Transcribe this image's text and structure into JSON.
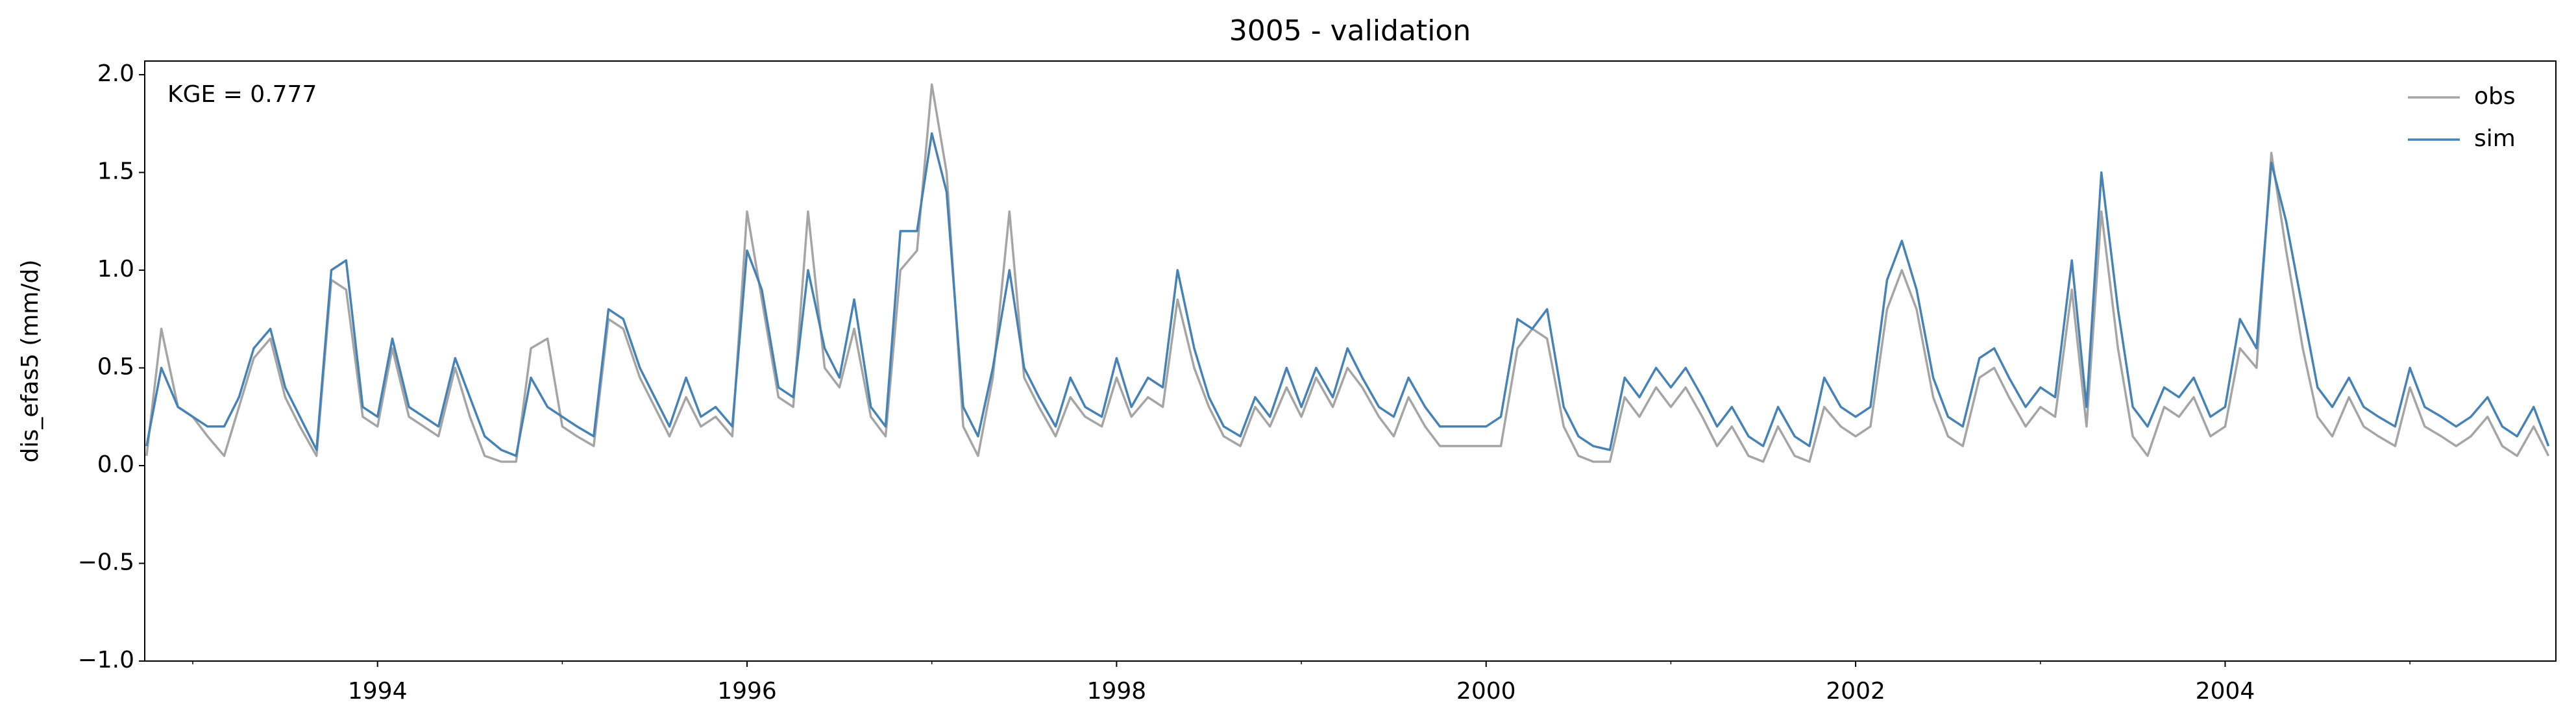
{
  "chart_data": {
    "type": "line",
    "title": "3005 - validation",
    "y_label": "dis_efas5 (mm/d)",
    "annotation": "KGE = 0.777",
    "legend": "upper right",
    "xlim": [
      1992.74,
      2005.79
    ],
    "xticks": [
      1994,
      1996,
      1998,
      2000,
      2002,
      2004
    ],
    "xminorticks": [
      1993,
      1995,
      1997,
      1999,
      2001,
      2003,
      2005
    ],
    "ylim": [
      -1,
      2.07
    ],
    "yticks": [
      {
        "value": -1,
        "label": "−1.0"
      },
      {
        "value": -0.5,
        "label": "−0.5"
      },
      {
        "value": 0,
        "label": "0.0"
      },
      {
        "value": 0.5,
        "label": "0.5"
      },
      {
        "value": 1,
        "label": "1.0"
      },
      {
        "value": 1.5,
        "label": "1.5"
      },
      {
        "value": 2,
        "label": "2.0"
      }
    ],
    "x": [
      1992.75,
      1992.83,
      1992.92,
      1993.0,
      1993.08,
      1993.17,
      1993.25,
      1993.33,
      1993.42,
      1993.5,
      1993.58,
      1993.67,
      1993.75,
      1993.83,
      1993.92,
      1994.0,
      1994.08,
      1994.17,
      1994.25,
      1994.33,
      1994.42,
      1994.5,
      1994.58,
      1994.67,
      1994.75,
      1994.83,
      1994.92,
      1995.0,
      1995.08,
      1995.17,
      1995.25,
      1995.33,
      1995.42,
      1995.5,
      1995.58,
      1995.67,
      1995.75,
      1995.83,
      1995.92,
      1996.0,
      1996.08,
      1996.17,
      1996.25,
      1996.33,
      1996.42,
      1996.5,
      1996.58,
      1996.67,
      1996.75,
      1996.83,
      1996.92,
      1997.0,
      1997.08,
      1997.17,
      1997.25,
      1997.33,
      1997.42,
      1997.5,
      1997.58,
      1997.67,
      1997.75,
      1997.83,
      1997.92,
      1998.0,
      1998.08,
      1998.17,
      1998.25,
      1998.33,
      1998.42,
      1998.5,
      1998.58,
      1998.67,
      1998.75,
      1998.83,
      1998.92,
      1999.0,
      1999.08,
      1999.17,
      1999.25,
      1999.33,
      1999.42,
      1999.5,
      1999.58,
      1999.67,
      1999.75,
      1999.83,
      1999.92,
      2000.0,
      2000.08,
      2000.17,
      2000.25,
      2000.33,
      2000.42,
      2000.5,
      2000.58,
      2000.67,
      2000.75,
      2000.83,
      2000.92,
      2001.0,
      2001.08,
      2001.17,
      2001.25,
      2001.33,
      2001.42,
      2001.5,
      2001.58,
      2001.67,
      2001.75,
      2001.83,
      2001.92,
      2002.0,
      2002.08,
      2002.17,
      2002.25,
      2002.33,
      2002.42,
      2002.5,
      2002.58,
      2002.67,
      2002.75,
      2002.83,
      2002.92,
      2003.0,
      2003.08,
      2003.17,
      2003.25,
      2003.33,
      2003.42,
      2003.5,
      2003.58,
      2003.67,
      2003.75,
      2003.83,
      2003.92,
      2004.0,
      2004.08,
      2004.17,
      2004.25,
      2004.33,
      2004.42,
      2004.5,
      2004.58,
      2004.67,
      2004.75,
      2004.83,
      2004.92,
      2005.0,
      2005.08,
      2005.17,
      2005.25,
      2005.33,
      2005.42,
      2005.5,
      2005.58,
      2005.67,
      2005.75
    ],
    "series": [
      {
        "name": "obs",
        "color": "#a5a5a5",
        "values": [
          0.05,
          0.7,
          0.3,
          0.25,
          0.15,
          0.05,
          0.3,
          0.55,
          0.65,
          0.35,
          0.2,
          0.05,
          0.95,
          0.9,
          0.25,
          0.2,
          0.6,
          0.25,
          0.2,
          0.15,
          0.5,
          0.25,
          0.05,
          0.02,
          0.02,
          0.6,
          0.65,
          0.2,
          0.15,
          0.1,
          0.75,
          0.7,
          0.45,
          0.3,
          0.15,
          0.35,
          0.2,
          0.25,
          0.15,
          1.3,
          0.85,
          0.35,
          0.3,
          1.3,
          0.5,
          0.4,
          0.7,
          0.25,
          0.15,
          1.0,
          1.1,
          1.95,
          1.5,
          0.2,
          0.05,
          0.45,
          1.3,
          0.45,
          0.3,
          0.15,
          0.35,
          0.25,
          0.2,
          0.45,
          0.25,
          0.35,
          0.3,
          0.85,
          0.5,
          0.3,
          0.15,
          0.1,
          0.3,
          0.2,
          0.4,
          0.25,
          0.45,
          0.3,
          0.5,
          0.4,
          0.25,
          0.15,
          0.35,
          0.2,
          0.1,
          0.1,
          0.1,
          0.1,
          0.1,
          0.6,
          0.7,
          0.65,
          0.2,
          0.05,
          0.02,
          0.02,
          0.35,
          0.25,
          0.4,
          0.3,
          0.4,
          0.25,
          0.1,
          0.2,
          0.05,
          0.02,
          0.2,
          0.05,
          0.02,
          0.3,
          0.2,
          0.15,
          0.2,
          0.8,
          1.0,
          0.8,
          0.35,
          0.15,
          0.1,
          0.45,
          0.5,
          0.35,
          0.2,
          0.3,
          0.25,
          0.9,
          0.2,
          1.3,
          0.6,
          0.15,
          0.05,
          0.3,
          0.25,
          0.35,
          0.15,
          0.2,
          0.6,
          0.5,
          1.6,
          1.1,
          0.6,
          0.25,
          0.15,
          0.35,
          0.2,
          0.15,
          0.1,
          0.4,
          0.2,
          0.15,
          0.1,
          0.15,
          0.25,
          0.1,
          0.05,
          0.2,
          0.05
        ]
      },
      {
        "name": "sim",
        "color": "#4682b4",
        "values": [
          0.1,
          0.5,
          0.3,
          0.25,
          0.2,
          0.2,
          0.35,
          0.6,
          0.7,
          0.4,
          0.25,
          0.08,
          1.0,
          1.05,
          0.3,
          0.25,
          0.65,
          0.3,
          0.25,
          0.2,
          0.55,
          0.35,
          0.15,
          0.08,
          0.05,
          0.45,
          0.3,
          0.25,
          0.2,
          0.15,
          0.8,
          0.75,
          0.5,
          0.35,
          0.2,
          0.45,
          0.25,
          0.3,
          0.2,
          1.1,
          0.9,
          0.4,
          0.35,
          1.0,
          0.6,
          0.45,
          0.85,
          0.3,
          0.2,
          1.2,
          1.2,
          1.7,
          1.4,
          0.3,
          0.15,
          0.5,
          1.0,
          0.5,
          0.35,
          0.2,
          0.45,
          0.3,
          0.25,
          0.55,
          0.3,
          0.45,
          0.4,
          1.0,
          0.6,
          0.35,
          0.2,
          0.15,
          0.35,
          0.25,
          0.5,
          0.3,
          0.5,
          0.35,
          0.6,
          0.45,
          0.3,
          0.25,
          0.45,
          0.3,
          0.2,
          0.2,
          0.2,
          0.2,
          0.25,
          0.75,
          0.7,
          0.8,
          0.3,
          0.15,
          0.1,
          0.08,
          0.45,
          0.35,
          0.5,
          0.4,
          0.5,
          0.35,
          0.2,
          0.3,
          0.15,
          0.1,
          0.3,
          0.15,
          0.1,
          0.45,
          0.3,
          0.25,
          0.3,
          0.95,
          1.15,
          0.9,
          0.45,
          0.25,
          0.2,
          0.55,
          0.6,
          0.45,
          0.3,
          0.4,
          0.35,
          1.05,
          0.3,
          1.5,
          0.8,
          0.3,
          0.2,
          0.4,
          0.35,
          0.45,
          0.25,
          0.3,
          0.75,
          0.6,
          1.55,
          1.25,
          0.8,
          0.4,
          0.3,
          0.45,
          0.3,
          0.25,
          0.2,
          0.5,
          0.3,
          0.25,
          0.2,
          0.25,
          0.35,
          0.2,
          0.15,
          0.3,
          0.1
        ]
      }
    ]
  }
}
